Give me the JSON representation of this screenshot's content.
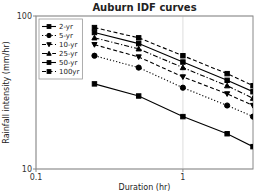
{
  "chart_data": {
    "type": "line",
    "title": "Auburn IDF curves",
    "xlabel": "Duration (hr)",
    "ylabel": "Rainfall intensity (mm/hr)",
    "x": [
      0.25,
      0.5,
      1.0,
      2.0,
      3.0
    ],
    "series": [
      {
        "name": "2-yr",
        "color": "black",
        "marker": "square",
        "line_style": "solid",
        "values": [
          36,
          30,
          22,
          17,
          14
        ]
      },
      {
        "name": "5-yr",
        "color": "black",
        "marker": "circle",
        "line_style": "dotted",
        "values": [
          55,
          46,
          34,
          26,
          22
        ]
      },
      {
        "name": "10-yr",
        "color": "black",
        "marker": "triangle_down",
        "line_style": "dashed",
        "values": [
          65,
          54,
          40,
          31,
          26
        ]
      },
      {
        "name": "25-yr",
        "color": "black",
        "marker": "triangle_up",
        "line_style": "dashdot",
        "values": [
          72,
          61,
          46,
          35,
          29
        ]
      },
      {
        "name": "50-yr",
        "color": "black",
        "marker": "square",
        "line_style": "solid",
        "values": [
          78,
          66,
          50,
          38,
          32
        ]
      },
      {
        "name": "100yr",
        "color": "black",
        "marker": "square",
        "line_style": "dashed",
        "values": [
          84,
          72,
          55,
          42,
          35
        ]
      }
    ],
    "xlim": [
      0.1,
      3.0
    ],
    "ylim": [
      10,
      100
    ],
    "xticks": [
      0.1,
      1
    ],
    "yticks": [
      10,
      100
    ],
    "log": true,
    "grid": true,
    "legend": "upper left"
  }
}
